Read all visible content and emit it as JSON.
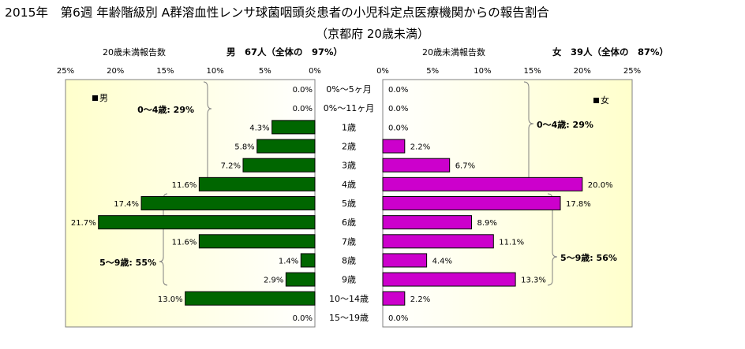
{
  "title": {
    "line1": "2015年　第6週 年齢階級別 A群溶血性レンサ球菌咽頭炎患者の小児科定点医療機関からの報告割合",
    "line2": "（京都府 20歳未満）"
  },
  "chart_data": {
    "type": "bar",
    "orientation": "horizontal-butterfly",
    "categories": [
      "0%～5ヶ月",
      "0%～11ヶ月",
      "1歳",
      "2歳",
      "3歳",
      "4歳",
      "5歳",
      "6歳",
      "7歳",
      "8歳",
      "9歳",
      "10～14歳",
      "15～19歳"
    ],
    "xlim": [
      0,
      25
    ],
    "ticks": [
      0,
      5,
      10,
      15,
      20,
      25
    ],
    "tick_suffix": "%",
    "grid": false,
    "male": {
      "header": "20歳未満報告数",
      "summary": "男　67人（全体の　97%）",
      "legend": "男",
      "color": "#006600",
      "values": [
        0.0,
        0.0,
        4.3,
        5.8,
        7.2,
        11.6,
        17.4,
        21.7,
        11.6,
        1.4,
        2.9,
        13.0,
        0.0
      ],
      "labels": [
        "0.0%",
        "0.0%",
        "4.3%",
        "5.8%",
        "7.2%",
        "11.6%",
        "17.4%",
        "21.7%",
        "11.6%",
        "1.4%",
        "2.9%",
        "13.0%",
        "0.0%"
      ],
      "bracket1_label": "0～4歳: 29%",
      "bracket2_label": "5～9歳: 55%"
    },
    "female": {
      "header": "20歳未満報告数",
      "summary": "女　39人（全体の　87%）",
      "legend": "女",
      "color": "#cc00cc",
      "values": [
        0.0,
        0.0,
        0.0,
        2.2,
        6.7,
        20.0,
        17.8,
        8.9,
        11.1,
        4.4,
        13.3,
        2.2,
        0.0
      ],
      "labels": [
        "0.0%",
        "0.0%",
        "0.0%",
        "2.2%",
        "6.7%",
        "20.0%",
        "17.8%",
        "8.9%",
        "11.1%",
        "4.4%",
        "13.3%",
        "2.2%",
        "0.0%"
      ],
      "bracket1_label": "0～4歳: 29%",
      "bracket2_label": "5～9歳: 56%"
    }
  },
  "colors": {
    "panel_grad_start": "#ffffff",
    "panel_grad_end": "#ffffcc",
    "male_bar": "#006600",
    "female_bar": "#cc00cc"
  }
}
